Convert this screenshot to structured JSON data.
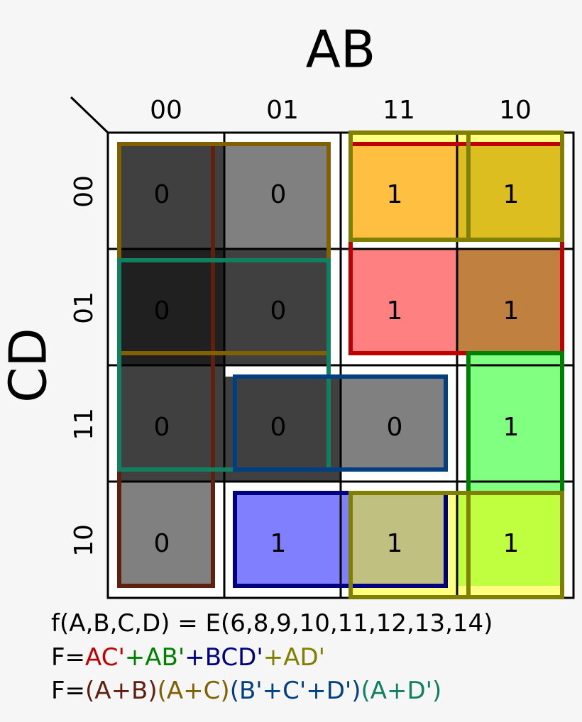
{
  "map": {
    "col_var": "AB",
    "row_var": "CD",
    "columns": [
      "00",
      "01",
      "11",
      "10"
    ],
    "rows": [
      "00",
      "01",
      "11",
      "10"
    ],
    "cells": [
      [
        "0",
        "0",
        "1",
        "1"
      ],
      [
        "0",
        "0",
        "1",
        "1"
      ],
      [
        "0",
        "0",
        "0",
        "1"
      ],
      [
        "0",
        "1",
        "1",
        "1"
      ]
    ]
  },
  "formulas": [
    {
      "segments": [
        {
          "text": "f(A,B,C,D) = E(6,8,9,10,11,12,13,14)",
          "color": "#000000"
        }
      ]
    },
    {
      "segments": [
        {
          "text": "F=",
          "color": "#000000"
        },
        {
          "text": "AC'",
          "color": "#c00000"
        },
        {
          "text": "+AB'",
          "color": "#008000"
        },
        {
          "text": "+BCD'",
          "color": "#000080"
        },
        {
          "text": "+AD'",
          "color": "#808000"
        }
      ]
    },
    {
      "segments": [
        {
          "text": "F=",
          "color": "#000000"
        },
        {
          "text": "(A+B)",
          "color": "#602010"
        },
        {
          "text": "(A+C)",
          "color": "#806000"
        },
        {
          "text": "(B'+C'+D')",
          "color": "#004080"
        },
        {
          "text": "(A+D')",
          "color": "#108060"
        }
      ]
    }
  ]
}
